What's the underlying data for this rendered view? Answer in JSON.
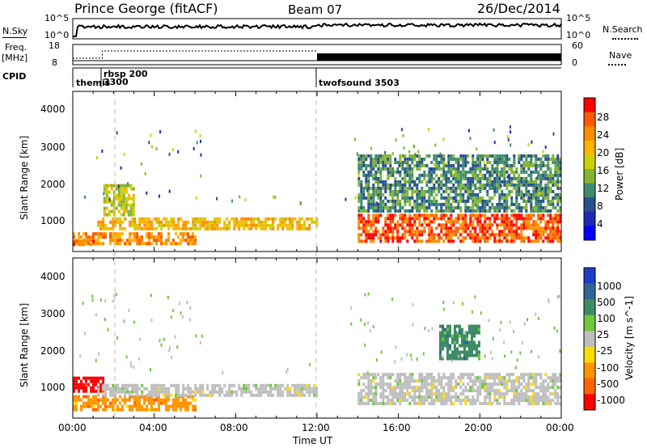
{
  "header": {
    "station": "Prince George (fitACF)",
    "beam": "Beam 07",
    "date": "26/Dec/2014"
  },
  "summary": {
    "nsky_label": "N.Sky",
    "nsky_ticks": [
      "10^5",
      "10^0"
    ],
    "nsearch_label": "N.Search",
    "freq_label": "Freq.",
    "freq_unit": "[MHz]",
    "freq_ticks": [
      "18",
      "8"
    ],
    "nave_label": "Nave",
    "nave_ticks": [
      "60",
      "0"
    ],
    "cpid_label": "CPID",
    "cpid_segments": [
      {
        "name": "themis",
        "start_hour": 0.2
      },
      {
        "name": "rbsp 200",
        "start_hour": 1.45
      },
      {
        "name": "3300",
        "start_hour": 1.45
      },
      {
        "name": "twofsound 3503",
        "start_hour": 12.0
      }
    ]
  },
  "axes": {
    "xlabel": "Time UT",
    "xticks": [
      "00:00",
      "04:00",
      "08:00",
      "12:00",
      "16:00",
      "20:00",
      "00:00"
    ],
    "ylabel": "Slant Range [km]",
    "yticks": [
      "4000",
      "3000",
      "2000",
      "1000"
    ]
  },
  "colorbars": {
    "power": {
      "label": "Power [dB]",
      "ticks": [
        "28",
        "24",
        "20",
        "16",
        "12",
        "8",
        "4"
      ],
      "colors": [
        "#ff0000",
        "#ff5a00",
        "#ff8c00",
        "#ffb400",
        "#c8d200",
        "#82b432",
        "#3c8c6e",
        "#28508c",
        "#1e28b4",
        "#0000ff"
      ]
    },
    "velocity": {
      "label": "Velocity [m s^-1]",
      "ticks": [
        "1000",
        "500",
        "100",
        "25",
        "-25",
        "-100",
        "-500",
        "-1000"
      ],
      "colors": [
        "#1e3cc8",
        "#326496",
        "#3c8c64",
        "#6ec83c",
        "#bebebe",
        "#ffdc00",
        "#ff9600",
        "#ff6400",
        "#ff0000"
      ]
    }
  },
  "chart_data": [
    {
      "type": "heatmap",
      "title": "Power",
      "xlabel": "Time UT",
      "ylabel": "Slant Range [km]",
      "x_range_hours": [
        0,
        24
      ],
      "y_range_km": [
        180,
        4500
      ],
      "colorbar_label": "Power [dB]",
      "regions": [
        {
          "t": [
            0.0,
            6.0
          ],
          "r": [
            400,
            700
          ],
          "power": 24
        },
        {
          "t": [
            0.0,
            1.0
          ],
          "r": [
            380,
            500
          ],
          "power": 28
        },
        {
          "t": [
            1.2,
            12.0
          ],
          "r": [
            800,
            1100
          ],
          "power": 22
        },
        {
          "t": [
            1.5,
            3.0
          ],
          "r": [
            1200,
            2000
          ],
          "power": 18
        },
        {
          "t": [
            14.0,
            24.0
          ],
          "r": [
            500,
            1200
          ],
          "power": 28
        },
        {
          "t": [
            14.0,
            24.0
          ],
          "r": [
            1300,
            2800
          ],
          "power": 12
        }
      ]
    },
    {
      "type": "heatmap",
      "title": "Velocity",
      "xlabel": "Time UT",
      "ylabel": "Slant Range [km]",
      "x_range_hours": [
        0,
        24
      ],
      "y_range_km": [
        180,
        4500
      ],
      "colorbar_label": "Velocity [m s^-1]",
      "regions": [
        {
          "t": [
            0.0,
            6.0
          ],
          "r": [
            400,
            800
          ],
          "velocity": -300
        },
        {
          "t": [
            0.0,
            1.5
          ],
          "r": [
            900,
            1300
          ],
          "velocity": -700
        },
        {
          "t": [
            1.2,
            12.0
          ],
          "r": [
            800,
            1100
          ],
          "velocity": 0
        },
        {
          "t": [
            14.0,
            24.0
          ],
          "r": [
            600,
            1400
          ],
          "velocity": 0
        },
        {
          "t": [
            18.0,
            20.0
          ],
          "r": [
            1800,
            2700
          ],
          "velocity": 300
        }
      ]
    }
  ]
}
